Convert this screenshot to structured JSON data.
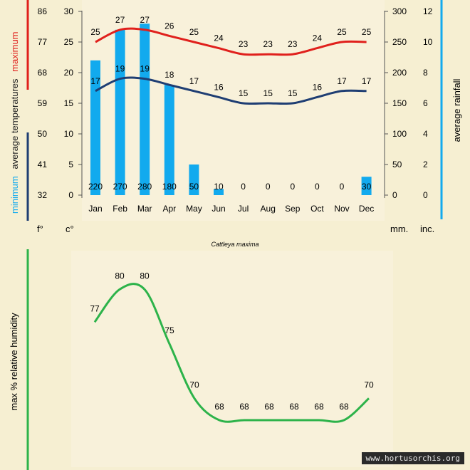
{
  "colors": {
    "background": "#f6efd2",
    "panel": "#f8f1da",
    "max_temp": "#e0201c",
    "min_temp": "#1f3e73",
    "rainfall": "#12aaee",
    "humidity": "#2db34a"
  },
  "caption": "Cattleya maxima",
  "watermark": "www.hortusorchis.org",
  "climate_chart": {
    "type": "bar+line",
    "months": [
      "Jan",
      "Feb",
      "Mar",
      "Apr",
      "May",
      "Jun",
      "Jul",
      "Aug",
      "Sep",
      "Oct",
      "Nov",
      "Dec"
    ],
    "max_temp_c": [
      25,
      27,
      27,
      26,
      25,
      24,
      23,
      23,
      23,
      24,
      25,
      25
    ],
    "min_temp_c": [
      17,
      19,
      19,
      18,
      17,
      16,
      15,
      15,
      15,
      16,
      17,
      17
    ],
    "rainfall_mm": [
      220,
      270,
      280,
      180,
      50,
      10,
      0,
      0,
      0,
      0,
      0,
      30
    ],
    "celsius_ticks": [
      "0",
      "5",
      "10",
      "15",
      "20",
      "25",
      "30"
    ],
    "fahrenheit_ticks": [
      "32",
      "41",
      "50",
      "59",
      "68",
      "77",
      "86"
    ],
    "mm_ticks": [
      "0",
      "50",
      "100",
      "150",
      "200",
      "250",
      "300"
    ],
    "inch_ticks": [
      "0",
      "2",
      "4",
      "6",
      "8",
      "10",
      "12"
    ],
    "c_range": [
      0,
      30
    ],
    "mm_range": [
      0,
      300
    ],
    "ylabel_max": "maximum",
    "ylabel_avg": "average  temperatures",
    "ylabel_min": "minimum",
    "ylabel_rain": "average  rainfall",
    "unit_f": "f°",
    "unit_c": "c°",
    "unit_mm": "mm.",
    "unit_in": "inc."
  },
  "humidity_chart": {
    "type": "line",
    "values": [
      77,
      80,
      80,
      75,
      70,
      68,
      68,
      68,
      68,
      68,
      68,
      70
    ],
    "ylabel": "max  %  relative humidity"
  }
}
